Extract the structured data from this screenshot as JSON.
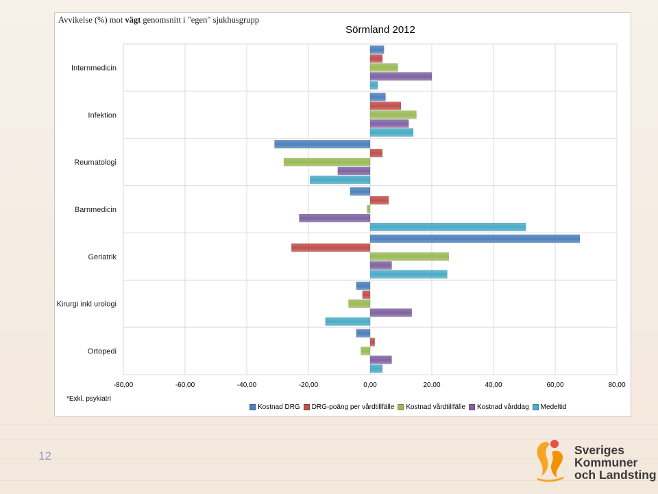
{
  "slide": {
    "subtitle_prefix": "Avvikelse (%) mot ",
    "subtitle_bold": "vägt",
    "subtitle_suffix": " genomsnitt i \"egen\" sjukhusgrupp",
    "footnote": "*Exkl.  psykiatri",
    "page_number": "12",
    "logo_lines": [
      "Sveriges",
      "Kommuner",
      "och Landsting"
    ]
  },
  "chart_data": {
    "type": "bar",
    "orientation": "horizontal",
    "title": "Sörmland 2012",
    "xlabel": "",
    "ylabel": "",
    "xlim": [
      -80,
      80
    ],
    "x_ticks": [
      -80,
      -60,
      -40,
      -20,
      0,
      20,
      40,
      60,
      80
    ],
    "x_tick_labels": [
      "-80,00",
      "-60,00",
      "-40,00",
      "-20,00",
      "0,00",
      "20,00",
      "40,00",
      "60,00",
      "80,00"
    ],
    "grid": true,
    "legend_position": "bottom",
    "categories": [
      "Internmedicin",
      "Infektion",
      "Reumatologi",
      "Barnmedicin",
      "Geriatrik",
      "Kirurgi inkl urologi",
      "Ortopedi"
    ],
    "series": [
      {
        "name": "Kostnad DRG",
        "color": "#4f81bd",
        "values": [
          4.5,
          5,
          -31,
          -6.5,
          68,
          -4.5,
          -4.5
        ]
      },
      {
        "name": "DRG-poäng per vårdtillfälle",
        "color": "#c0504d",
        "values": [
          4,
          10,
          4,
          6,
          -25.5,
          -2.5,
          1.5
        ]
      },
      {
        "name": "Kostnad vårdtillfälle",
        "color": "#9bbb59",
        "values": [
          9,
          15,
          -28,
          -1,
          25.5,
          -7,
          -3
        ]
      },
      {
        "name": "Kostnad vårddag",
        "color": "#8064a2",
        "values": [
          20,
          12.5,
          -10.5,
          -23,
          7,
          13.5,
          7
        ]
      },
      {
        "name": "Medeltid",
        "color": "#4bacc6",
        "values": [
          2.5,
          14,
          -19.5,
          50.5,
          25,
          -14.5,
          4
        ]
      }
    ]
  }
}
